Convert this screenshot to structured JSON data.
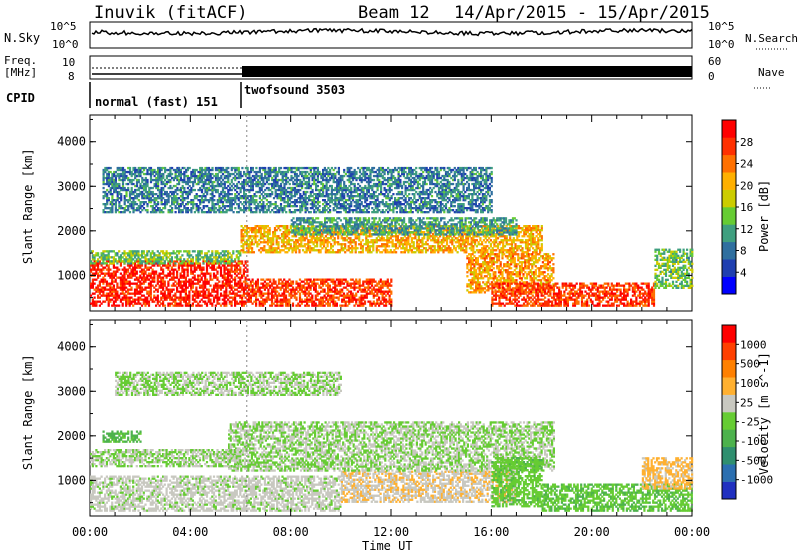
{
  "header": {
    "station": "Inuvik (fitACF)",
    "beam": "Beam 12",
    "date_range": "14/Apr/2015 - 15/Apr/2015"
  },
  "noise_panel": {
    "left_label": "N.Sky",
    "left_ticks": [
      "10^5",
      "10^0"
    ],
    "right_ticks": [
      "10^5",
      "10^0"
    ],
    "right_label": "N.Search"
  },
  "freq_panel": {
    "left_label_1": "Freq.",
    "left_label_2": "[MHz]",
    "left_ticks": [
      "10",
      "8"
    ],
    "right_ticks": [
      "60",
      "0"
    ],
    "right_label": "Nave"
  },
  "cpid_panel": {
    "label": "CPID",
    "modes": [
      "normal (fast) 151",
      "twofsound 3503"
    ]
  },
  "chart_data": [
    {
      "type": "heatmap",
      "title": "",
      "xlabel": "Time UT",
      "ylabel": "Slant Range [km]",
      "x_ticks": [
        "00:00",
        "04:00",
        "08:00",
        "12:00",
        "16:00",
        "20:00",
        "00:00"
      ],
      "y_ticks": [
        "1000",
        "2000",
        "3000",
        "4000"
      ],
      "ylim": [
        200,
        4600
      ],
      "colorbar": {
        "label": "Power [dB]",
        "ticks": [
          "4",
          "8",
          "12",
          "16",
          "20",
          "24",
          "28"
        ],
        "range": [
          0,
          32
        ],
        "colors": [
          "#0000ff",
          "#1f3fb0",
          "#2f6f9f",
          "#3f9f7f",
          "#66cc33",
          "#cccc00",
          "#ffb000",
          "#ff7000",
          "#ff3000",
          "#ff0000"
        ]
      },
      "features": [
        {
          "t0": 0.0,
          "t1": 6.3,
          "r0": 300,
          "r1": 1300,
          "value": 29
        },
        {
          "t0": 6.3,
          "t1": 12.0,
          "r0": 300,
          "r1": 900,
          "value": 27
        },
        {
          "t0": 0.0,
          "t1": 6.0,
          "r0": 1250,
          "r1": 1550,
          "value": 14
        },
        {
          "t0": 6.0,
          "t1": 18.0,
          "r0": 1500,
          "r1": 2100,
          "value": 21
        },
        {
          "t0": 8.0,
          "t1": 17.0,
          "r0": 1900,
          "r1": 2300,
          "value": 11
        },
        {
          "t0": 0.5,
          "t1": 16.0,
          "r0": 2400,
          "r1": 3400,
          "value": 9
        },
        {
          "t0": 15.0,
          "t1": 18.5,
          "r0": 600,
          "r1": 1500,
          "value": 22
        },
        {
          "t0": 16.0,
          "t1": 22.5,
          "r0": 300,
          "r1": 800,
          "value": 27
        },
        {
          "t0": 22.5,
          "t1": 24.0,
          "r0": 700,
          "r1": 1600,
          "value": 14
        }
      ]
    },
    {
      "type": "heatmap",
      "title": "",
      "xlabel": "Time UT",
      "ylabel": "Slant Range [km]",
      "x_ticks": [
        "00:00",
        "04:00",
        "08:00",
        "12:00",
        "16:00",
        "20:00",
        "00:00"
      ],
      "y_ticks": [
        "1000",
        "2000",
        "3000",
        "4000"
      ],
      "ylim": [
        200,
        4600
      ],
      "colorbar": {
        "label": "Velocity [m s^-1]",
        "ticks": [
          "1000",
          "500",
          "100",
          "25",
          "-25",
          "-100",
          "-500",
          "-1000"
        ],
        "range": [
          -1200,
          1200
        ],
        "colors": [
          "#2030c0",
          "#2b6fb0",
          "#2f8f6f",
          "#4db24d",
          "#66cc33",
          "#c8c8c0",
          "#ffb030",
          "#ff8000",
          "#ff4000",
          "#ff0000"
        ]
      },
      "features": [
        {
          "t0": 0.0,
          "t1": 10.0,
          "r0": 300,
          "r1": 1100,
          "value": 80
        },
        {
          "t0": 10.0,
          "t1": 17.0,
          "r0": 500,
          "r1": 1200,
          "value": 200
        },
        {
          "t0": 5.5,
          "t1": 18.5,
          "r0": 1200,
          "r1": 2300,
          "value": 0
        },
        {
          "t0": 0.0,
          "t1": 6.0,
          "r0": 1300,
          "r1": 1700,
          "value": 0
        },
        {
          "t0": 0.5,
          "t1": 2.0,
          "r0": 1850,
          "r1": 2100,
          "value": -300
        },
        {
          "t0": 1.0,
          "t1": 10.0,
          "r0": 2900,
          "r1": 3400,
          "value": 0
        },
        {
          "t0": 16.0,
          "t1": 18.0,
          "r0": 400,
          "r1": 1500,
          "value": -150
        },
        {
          "t0": 18.0,
          "t1": 24.0,
          "r0": 300,
          "r1": 900,
          "value": -200
        },
        {
          "t0": 22.0,
          "t1": 24.0,
          "r0": 800,
          "r1": 1500,
          "value": 300
        }
      ]
    }
  ]
}
